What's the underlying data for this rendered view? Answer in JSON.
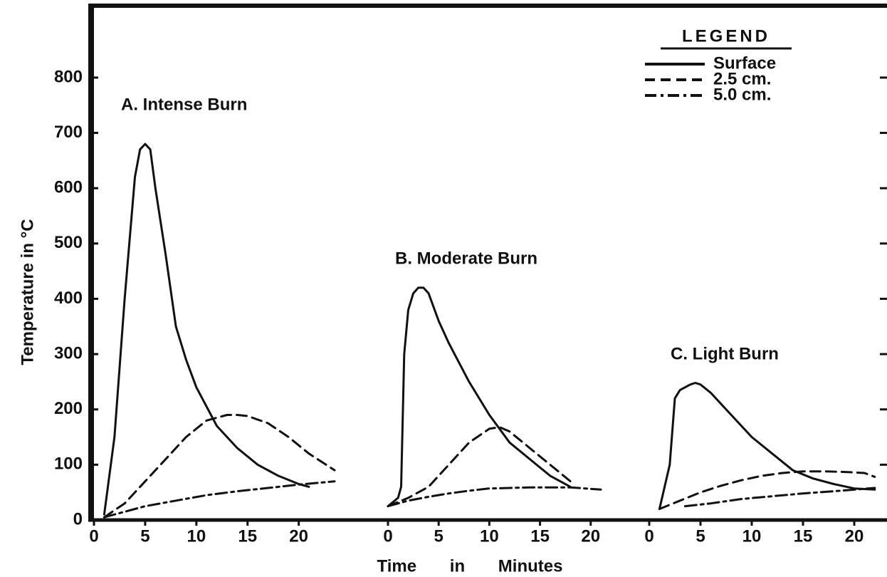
{
  "chart_data": [
    {
      "type": "line",
      "title": "A. Intense Burn",
      "ylabel": "Temperature in °C",
      "xlabel": "Time in Minutes",
      "legend_title": "LEGEND",
      "ylim": [
        0,
        930
      ],
      "yticks": [
        0,
        100,
        200,
        300,
        400,
        500,
        600,
        700,
        800
      ],
      "xlim": [
        0,
        23.5
      ],
      "xticks": [
        0,
        5,
        10,
        15,
        20
      ],
      "series": [
        {
          "name": "Surface",
          "color": "#111111",
          "dash": "solid",
          "x": [
            1,
            2,
            3,
            4,
            4.5,
            5,
            5.5,
            6,
            7,
            8,
            9,
            10,
            12,
            14,
            16,
            18,
            20,
            21
          ],
          "values": [
            10,
            150,
            400,
            620,
            670,
            680,
            670,
            600,
            480,
            350,
            290,
            240,
            170,
            130,
            100,
            80,
            65,
            60
          ]
        },
        {
          "name": "2.5 cm.",
          "color": "#111111",
          "dash": "dashed",
          "x": [
            1,
            3,
            5,
            7,
            9,
            11,
            13,
            14,
            15,
            17,
            19,
            21,
            23.5
          ],
          "values": [
            5,
            30,
            70,
            110,
            150,
            180,
            190,
            190,
            188,
            175,
            150,
            120,
            90
          ]
        },
        {
          "name": "5.0 cm.",
          "color": "#111111",
          "dash": "dashdot",
          "x": [
            1,
            3,
            5,
            8,
            11,
            14,
            17,
            20,
            23.5
          ],
          "values": [
            5,
            15,
            25,
            35,
            45,
            52,
            58,
            64,
            70
          ]
        }
      ]
    },
    {
      "type": "line",
      "title": "B. Moderate Burn",
      "xlim": [
        0,
        21
      ],
      "xticks": [
        0,
        5,
        10,
        15,
        20
      ],
      "series": [
        {
          "color": "#111111",
          "dash": "solid",
          "x": [
            0,
            1,
            1.3,
            1.6,
            2,
            2.5,
            3,
            3.5,
            4,
            5,
            6,
            8,
            10,
            12,
            14,
            16,
            18
          ],
          "values": [
            25,
            40,
            60,
            300,
            380,
            410,
            420,
            420,
            410,
            360,
            320,
            250,
            190,
            140,
            110,
            80,
            60
          ]
        },
        {
          "color": "#111111",
          "dash": "dashed",
          "x": [
            0,
            2,
            4,
            6,
            8,
            10,
            11,
            12,
            14,
            16,
            18
          ],
          "values": [
            25,
            40,
            60,
            100,
            140,
            165,
            168,
            160,
            130,
            100,
            70
          ]
        },
        {
          "color": "#111111",
          "dash": "dashdot",
          "x": [
            0,
            2,
            4,
            6,
            8,
            10,
            12,
            14,
            16,
            18,
            21
          ],
          "values": [
            25,
            35,
            42,
            48,
            53,
            57,
            58,
            59,
            59,
            59,
            55
          ]
        }
      ]
    },
    {
      "type": "line",
      "title": "C.  Light Burn",
      "xlim": [
        0,
        22.5
      ],
      "xticks": [
        0,
        5,
        10,
        15,
        20
      ],
      "series": [
        {
          "color": "#111111",
          "dash": "solid",
          "x": [
            1,
            2,
            2.5,
            3,
            4,
            4.5,
            5,
            6,
            8,
            10,
            12,
            14,
            16,
            18,
            20,
            22
          ],
          "values": [
            20,
            100,
            220,
            235,
            245,
            248,
            245,
            230,
            190,
            150,
            120,
            90,
            75,
            65,
            57,
            55
          ]
        },
        {
          "color": "#111111",
          "dash": "dashed",
          "x": [
            1,
            3,
            5,
            7,
            9,
            11,
            13,
            15,
            17,
            19,
            21,
            22
          ],
          "values": [
            20,
            35,
            50,
            62,
            72,
            80,
            85,
            88,
            88,
            87,
            85,
            78
          ]
        },
        {
          "color": "#111111",
          "dash": "dashdot",
          "x": [
            3.5,
            6,
            9,
            12,
            15,
            18,
            22
          ],
          "values": [
            25,
            30,
            38,
            43,
            48,
            52,
            58
          ]
        }
      ]
    }
  ]
}
